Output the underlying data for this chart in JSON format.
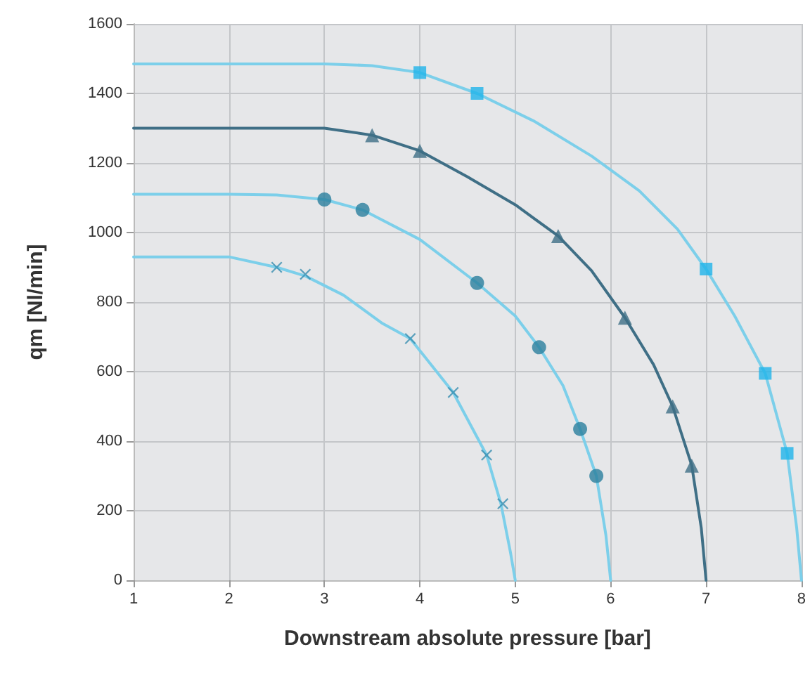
{
  "chart_data": {
    "type": "line",
    "xlabel": "Downstream absolute pressure [bar]",
    "ylabel": "qm [Nl/min]",
    "xlim": [
      1,
      8
    ],
    "xticks": [
      1,
      2,
      3,
      4,
      5,
      6,
      7,
      8
    ],
    "ylim": [
      0,
      1600
    ],
    "yticks": [
      0,
      200,
      400,
      600,
      800,
      1000,
      1200,
      1400,
      1600
    ],
    "grid": true,
    "series": [
      {
        "marker": "none",
        "color": "#7ccfea",
        "x": [
          1,
          2,
          3,
          3.5,
          4,
          4.6,
          5.2,
          5.8,
          6.3,
          6.7,
          7,
          7.3,
          7.62,
          7.85,
          7.95,
          8
        ],
        "values": [
          1485,
          1485,
          1485,
          1480,
          1460,
          1400,
          1320,
          1220,
          1120,
          1010,
          895,
          760,
          595,
          365,
          150,
          0
        ]
      },
      {
        "type": "scatter",
        "marker": "square",
        "color": "#1fb4ea",
        "x": [
          4,
          4.6,
          7,
          7.62,
          7.85
        ],
        "values": [
          1460,
          1400,
          895,
          595,
          365
        ]
      },
      {
        "marker": "none",
        "color": "#3f6f86",
        "x": [
          1,
          2,
          3,
          3.5,
          4,
          4.5,
          5,
          5.45,
          5.8,
          6.15,
          6.45,
          6.65,
          6.85,
          6.95,
          7
        ],
        "values": [
          1300,
          1300,
          1300,
          1280,
          1235,
          1160,
          1080,
          990,
          890,
          755,
          620,
          500,
          330,
          150,
          0
        ]
      },
      {
        "type": "scatter",
        "marker": "triangle",
        "color": "#3f6f86",
        "x": [
          3.5,
          4,
          5.45,
          6.15,
          6.65,
          6.85
        ],
        "values": [
          1280,
          1235,
          990,
          755,
          500,
          330
        ]
      },
      {
        "marker": "none",
        "color": "#7ccfea",
        "x": [
          1,
          2,
          2.5,
          3,
          3.4,
          4,
          4.6,
          5,
          5.25,
          5.5,
          5.68,
          5.85,
          5.95,
          6
        ],
        "values": [
          1110,
          1110,
          1108,
          1095,
          1065,
          980,
          855,
          760,
          670,
          560,
          435,
          300,
          130,
          0
        ]
      },
      {
        "type": "scatter",
        "marker": "circle",
        "color": "#2b7f9e",
        "x": [
          3,
          3.4,
          4.6,
          5.25,
          5.68,
          5.85
        ],
        "values": [
          1095,
          1065,
          855,
          670,
          435,
          300
        ]
      },
      {
        "marker": "none",
        "color": "#7ccfea",
        "x": [
          1,
          2,
          2.5,
          2.8,
          3.2,
          3.6,
          3.9,
          4.35,
          4.7,
          4.85,
          4.95,
          5
        ],
        "values": [
          930,
          930,
          900,
          875,
          820,
          740,
          695,
          540,
          360,
          220,
          80,
          0
        ]
      },
      {
        "type": "scatter",
        "marker": "cross",
        "color": "#3a8fb0",
        "x": [
          2.5,
          2.8,
          3.9,
          4.35,
          4.7,
          4.87
        ],
        "values": [
          900,
          880,
          695,
          540,
          360,
          220
        ]
      }
    ]
  }
}
